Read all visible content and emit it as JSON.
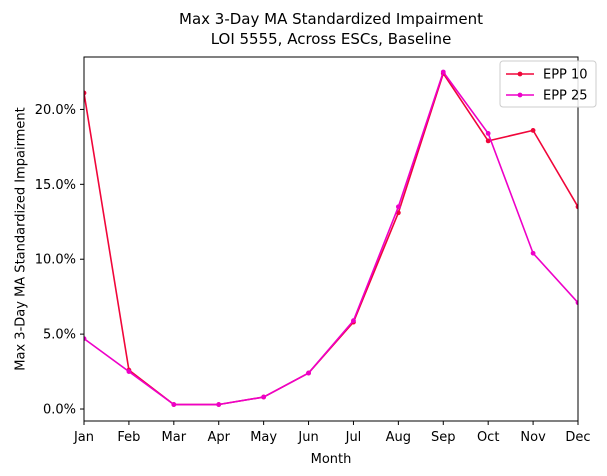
{
  "chart_data": {
    "type": "line",
    "title_line1": "Max 3-Day MA Standardized Impairment",
    "title_line2": "LOI 5555, Across ESCs, Baseline",
    "xlabel": "Month",
    "ylabel": "Max 3-Day MA Standardized Impairment",
    "categories": [
      "Jan",
      "Feb",
      "Mar",
      "Apr",
      "May",
      "Jun",
      "Jul",
      "Aug",
      "Sep",
      "Oct",
      "Nov",
      "Dec"
    ],
    "yticks": [
      0.0,
      0.05,
      0.1,
      0.15,
      0.2
    ],
    "ytick_labels": [
      "0.0%",
      "5.0%",
      "10.0%",
      "15.0%",
      "20.0%"
    ],
    "ylim": [
      -0.008,
      0.235
    ],
    "grid": false,
    "legend_position": "top-right",
    "series": [
      {
        "name": "EPP 10",
        "color": "#f0063a",
        "values": [
          0.211,
          0.026,
          0.003,
          0.003,
          0.008,
          0.024,
          0.058,
          0.131,
          0.224,
          0.179,
          0.186,
          0.135
        ]
      },
      {
        "name": "EPP 25",
        "color": "#ee00c8",
        "values": [
          0.047,
          0.025,
          0.003,
          0.003,
          0.008,
          0.024,
          0.059,
          0.135,
          0.225,
          0.184,
          0.104,
          0.071
        ]
      }
    ]
  }
}
